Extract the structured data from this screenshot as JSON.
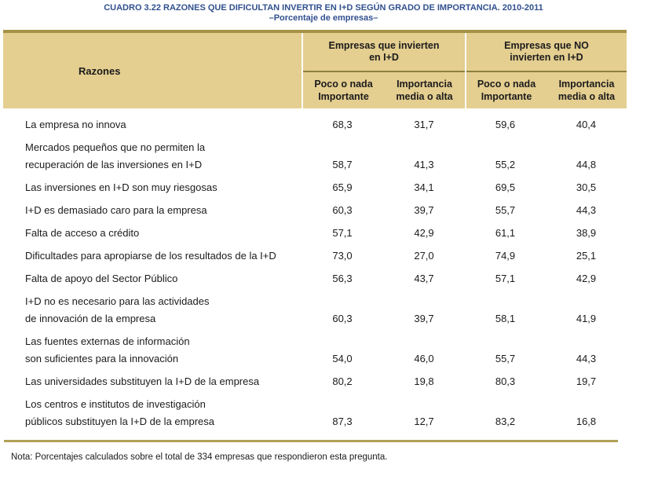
{
  "title": "CUADRO 3.22 RAZONES QUE DIFICULTAN INVERTIR EN I+D SEGÚN GRADO DE IMPORTANCIA. 2010-2011",
  "subtitle": "–Porcentaje de empresas–",
  "note": "Nota: Porcentajes calculados sobre el total de 334 empresas que respondieron esta pregunta.",
  "colors": {
    "title_text": "#31508f",
    "header_bg": "#e4ce90",
    "header_top_border": "#a59245",
    "header_inner_rule": "#8f813c",
    "separator": "#ffffff",
    "bottom_rule": "#b1a154",
    "body_text": "#1b1b1b"
  },
  "table": {
    "razones_label": "Razones",
    "groups": [
      {
        "title": "Empresas que invierten\nen I+D",
        "subheaders": [
          "Poco o nada\nImportante",
          "Importancia\nmedia o alta"
        ]
      },
      {
        "title": "Empresas que NO\ninvierten en I+D",
        "subheaders": [
          "Poco o nada\nImportante",
          "Importancia\nmedia o alta"
        ]
      }
    ],
    "rows": [
      {
        "razon": "La empresa no innova",
        "values": [
          "68,3",
          "31,7",
          "59,6",
          "40,4"
        ]
      },
      {
        "razon": "Mercados pequeños que no permiten la\nrecuperación de las inversiones en I+D",
        "values": [
          "58,7",
          "41,3",
          "55,2",
          "44,8"
        ]
      },
      {
        "razon": "Las inversiones en I+D son muy riesgosas",
        "values": [
          "65,9",
          "34,1",
          "69,5",
          "30,5"
        ]
      },
      {
        "razon": "I+D es demasiado caro para la empresa",
        "values": [
          "60,3",
          "39,7",
          "55,7",
          "44,3"
        ]
      },
      {
        "razon": "Falta de acceso a crédito",
        "values": [
          "57,1",
          "42,9",
          "61,1",
          "38,9"
        ]
      },
      {
        "razon": "Dificultades para apropiarse de los resultados de la I+D",
        "values": [
          "73,0",
          "27,0",
          "74,9",
          "25,1"
        ]
      },
      {
        "razon": "Falta de apoyo del Sector Público",
        "values": [
          "56,3",
          "43,7",
          "57,1",
          "42,9"
        ]
      },
      {
        "razon": "I+D no es necesario para las actividades\nde innovación de la empresa",
        "values": [
          "60,3",
          "39,7",
          "58,1",
          "41,9"
        ]
      },
      {
        "razon": "Las fuentes externas de información\nson suficientes para la innovación",
        "values": [
          "54,0",
          "46,0",
          "55,7",
          "44,3"
        ]
      },
      {
        "razon": "Las universidades substituyen la I+D de la empresa",
        "values": [
          "80,2",
          "19,8",
          "80,3",
          "19,7"
        ]
      },
      {
        "razon": "Los centros e institutos de investigación\npúblicos substituyen la I+D de la empresa",
        "values": [
          "87,3",
          "12,7",
          "83,2",
          "16,8"
        ]
      }
    ]
  },
  "chart_data": {
    "type": "table",
    "title": "CUADRO 3.22 RAZONES QUE DIFICULTAN INVERTIR EN I+D SEGÚN GRADO DE IMPORTANCIA. 2010-2011",
    "subtitle": "Porcentaje de empresas",
    "column_groups": [
      "Empresas que invierten en I+D",
      "Empresas que NO invierten en I+D"
    ],
    "columns": [
      "Razones",
      "Poco o nada Importante",
      "Importancia media o alta",
      "Poco o nada Importante",
      "Importancia media o alta"
    ],
    "rows": [
      [
        "La empresa no innova",
        68.3,
        31.7,
        59.6,
        40.4
      ],
      [
        "Mercados pequeños que no permiten la recuperación de las inversiones en I+D",
        58.7,
        41.3,
        55.2,
        44.8
      ],
      [
        "Las inversiones en I+D son muy riesgosas",
        65.9,
        34.1,
        69.5,
        30.5
      ],
      [
        "I+D es demasiado caro para la empresa",
        60.3,
        39.7,
        55.7,
        44.3
      ],
      [
        "Falta de acceso a crédito",
        57.1,
        42.9,
        61.1,
        38.9
      ],
      [
        "Dificultades para apropiarse de los resultados de la I+D",
        73.0,
        27.0,
        74.9,
        25.1
      ],
      [
        "Falta de apoyo del Sector Público",
        56.3,
        43.7,
        57.1,
        42.9
      ],
      [
        "I+D no es necesario para las actividades de innovación de la empresa",
        60.3,
        39.7,
        58.1,
        41.9
      ],
      [
        "Las fuentes externas de información son suficientes para la innovación",
        54.0,
        46.0,
        55.7,
        44.3
      ],
      [
        "Las universidades substituyen la I+D de la empresa",
        80.2,
        19.8,
        80.3,
        19.7
      ],
      [
        "Los centros e institutos de investigación públicos substituyen la I+D de la empresa",
        87.3,
        12.7,
        83.2,
        16.8
      ]
    ],
    "note": "Nota: Porcentajes calculados sobre el total de 334 empresas que respondieron esta pregunta."
  }
}
